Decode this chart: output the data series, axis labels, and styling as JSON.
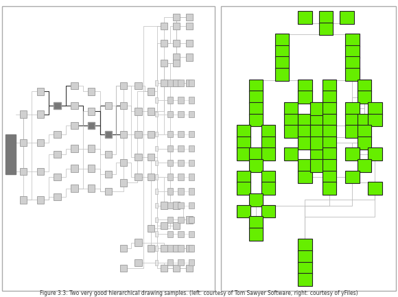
{
  "title": "Figure 3.3: Two very good hierarchical drawing samples. (left: courtesy of Tom Sawyer Software, right: courtesy of yFiles)",
  "fig_width": 5.8,
  "fig_height": 4.33,
  "dpi": 100,
  "bg_color": "#ffffff",
  "left_panel": {
    "border_color": "#aaaaaa",
    "node_color": "#d0d0d0",
    "node_edge_color": "#999999",
    "dark_node_color": "#777777",
    "line_color": "#bbbbbb",
    "dark_line_color": "#333333"
  },
  "right_panel": {
    "border_color": "#aaaaaa",
    "node_color": "#66ee00",
    "node_edge_color": "#222222",
    "line_color": "#bbbbbb"
  }
}
